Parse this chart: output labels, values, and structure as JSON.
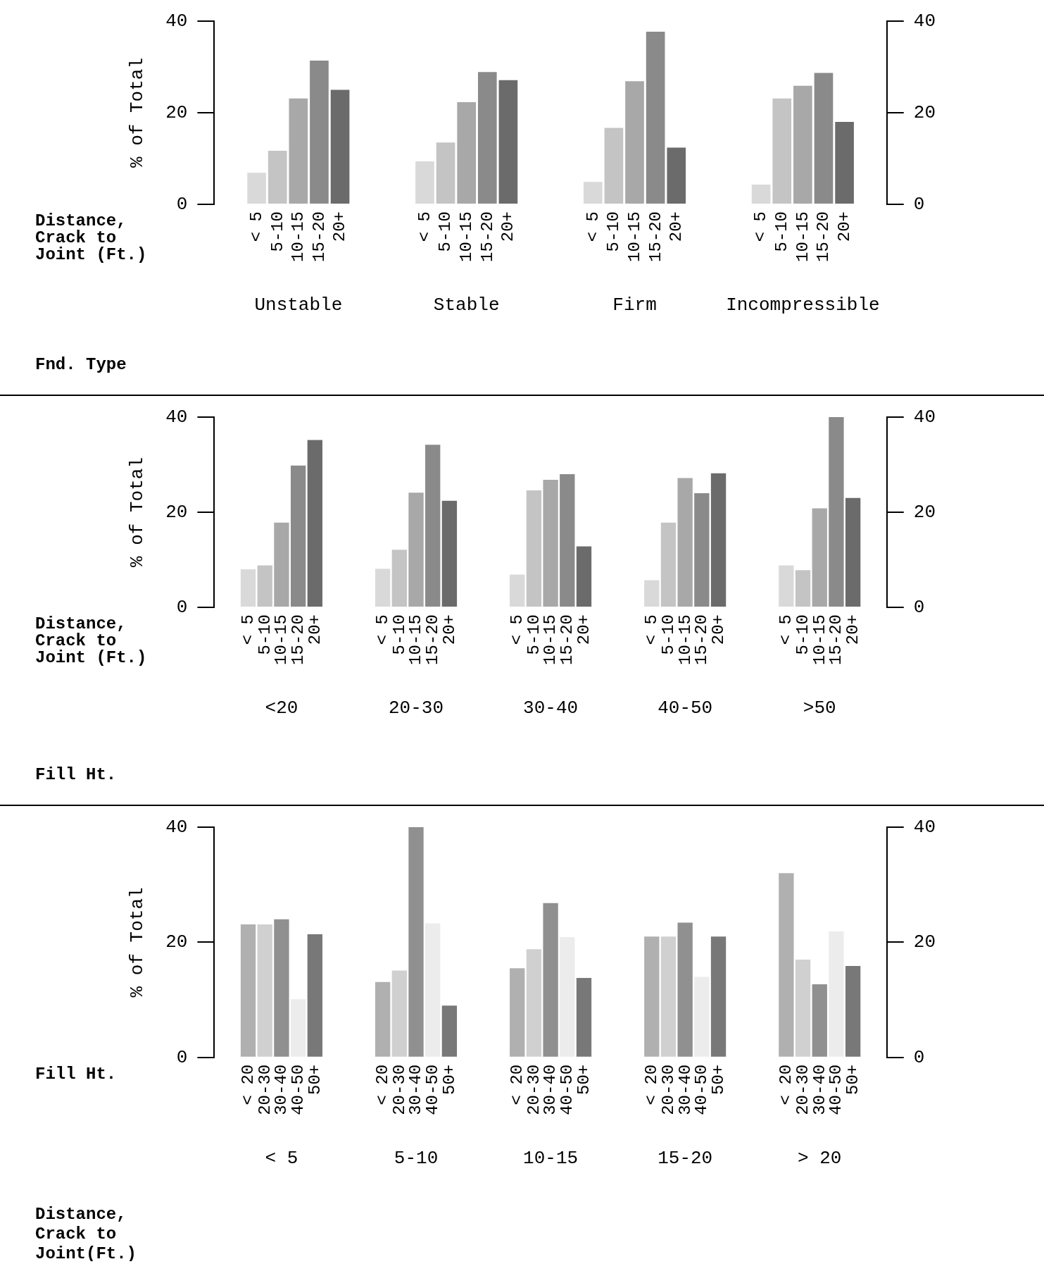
{
  "chart_data": [
    {
      "type": "bar",
      "xlabel": "Fnd. Type",
      "ylabel": "% of Total",
      "legend_title": "Distance,\nCrack to\nJoint (Ft.)",
      "categories": [
        "Unstable",
        "Stable",
        "Firm",
        "Incompressible"
      ],
      "series": [
        {
          "name": "< 5",
          "color": "#d9d9d9",
          "values": [
            6.9,
            9.4,
            4.9,
            4.3
          ]
        },
        {
          "name": "5-10",
          "color": "#c4c4c4",
          "values": [
            11.7,
            13.5,
            16.7,
            23.1
          ]
        },
        {
          "name": "10-15",
          "color": "#a8a8a8",
          "values": [
            23.1,
            22.3,
            26.9,
            25.9
          ]
        },
        {
          "name": "15-20",
          "color": "#8a8a8a",
          "values": [
            31.4,
            28.9,
            37.7,
            28.7
          ]
        },
        {
          "name": "20+",
          "color": "#6b6b6b",
          "values": [
            25.0,
            27.1,
            12.4,
            18.0
          ]
        }
      ],
      "ylim": [
        0,
        40
      ],
      "yticks": [
        0,
        20,
        40
      ],
      "y2lim": [
        0,
        40
      ],
      "y2ticks": [
        0,
        20,
        40
      ],
      "legend": "bottom"
    },
    {
      "type": "bar",
      "xlabel": "Fill Ht.",
      "ylabel": "% of Total",
      "legend_title": "Distance,\nCrack to\nJoint (Ft.)",
      "categories": [
        "<20",
        "20-30",
        "30-40",
        "40-50",
        ">50"
      ],
      "series": [
        {
          "name": "< 5",
          "color": "#d9d9d9",
          "values": [
            8.0,
            8.1,
            6.9,
            5.7,
            8.8
          ]
        },
        {
          "name": "5-10",
          "color": "#c4c4c4",
          "values": [
            8.8,
            12.1,
            24.6,
            17.8,
            7.8
          ]
        },
        {
          "name": "10-15",
          "color": "#a8a8a8",
          "values": [
            17.8,
            24.1,
            26.8,
            27.2,
            20.8
          ]
        },
        {
          "name": "15-20",
          "color": "#8a8a8a",
          "values": [
            29.8,
            34.2,
            28.0,
            24.0,
            40.0
          ]
        },
        {
          "name": "20+",
          "color": "#6b6b6b",
          "values": [
            35.2,
            22.4,
            12.8,
            28.2,
            23.0
          ]
        }
      ],
      "ylim": [
        0,
        40
      ],
      "yticks": [
        0,
        20,
        40
      ],
      "y2lim": [
        0,
        40
      ],
      "y2ticks": [
        0,
        20,
        40
      ],
      "legend": "bottom"
    },
    {
      "type": "bar",
      "xlabel": "Distance,\nCrack to\nJoint(Ft.)",
      "ylabel": "% of Total",
      "legend_title": "Fill Ht.",
      "categories": [
        "< 5",
        "5-10",
        "10-15",
        "15-20",
        "> 20"
      ],
      "series": [
        {
          "name": "< 20",
          "color": "#b0b0b0",
          "values": [
            23.1,
            13.1,
            15.5,
            21.0,
            32.0
          ]
        },
        {
          "name": "20-30",
          "color": "#d0d0d0",
          "values": [
            23.1,
            15.1,
            18.8,
            21.0,
            17.0
          ]
        },
        {
          "name": "30-40",
          "color": "#909090",
          "values": [
            24.0,
            40.0,
            26.8,
            23.4,
            12.7
          ]
        },
        {
          "name": "40-50",
          "color": "#ececec",
          "values": [
            10.1,
            23.3,
            20.9,
            14.0,
            21.9
          ]
        },
        {
          "name": "50+",
          "color": "#787878",
          "values": [
            21.4,
            9.0,
            13.8,
            21.0,
            15.9
          ]
        }
      ],
      "ylim": [
        0,
        40
      ],
      "yticks": [
        0,
        20,
        40
      ],
      "y2lim": [
        0,
        40
      ],
      "y2ticks": [
        0,
        20,
        40
      ],
      "legend": "bottom"
    }
  ]
}
